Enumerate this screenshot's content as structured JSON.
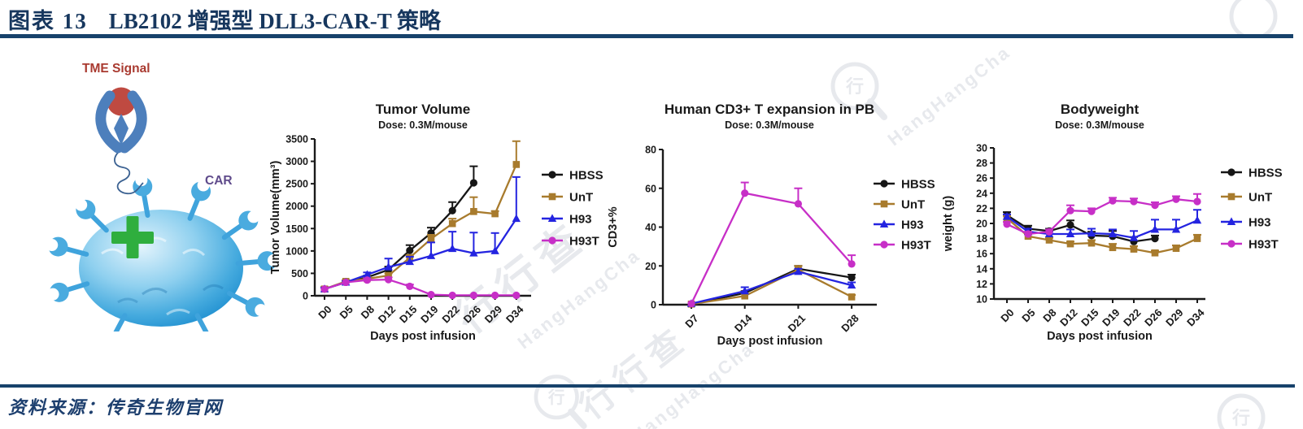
{
  "header": {
    "label": "图表 13",
    "title": "LB2102 增强型 DLL3-CAR-T 策略"
  },
  "footer": {
    "source_label": "资料来源：",
    "source": "传奇生物官网"
  },
  "diagram": {
    "tme_label": "TME Signal",
    "car_label": "CAR"
  },
  "watermark": {
    "cn": "行行查",
    "en": "HangHangCha"
  },
  "colors": {
    "accent_navy": "#17426b",
    "title_navy": "#17375e",
    "hbss": "#161616",
    "unt": "#a87b2d",
    "h93": "#2424e0",
    "h93t": "#c72fc7",
    "tme_red": "#a93a30",
    "car_purple": "#5f4b8b",
    "cell_blue": "#2e9fd9",
    "cross_green": "#2fae3e"
  },
  "chart_data": [
    {
      "type": "line",
      "title": "Tumor Volume",
      "subtitle": "Dose: 0.3M/mouse",
      "xlabel": "Days post infusion",
      "ylabel": "Tumor Volume(mm³)",
      "categories": [
        "D0",
        "D5",
        "D8",
        "D12",
        "D15",
        "D19",
        "D22",
        "D26",
        "D29",
        "D34"
      ],
      "ylim": [
        0,
        3500
      ],
      "ytick": 500,
      "grid": false,
      "legend_position": "right",
      "series": [
        {
          "name": "HBSS",
          "color": "#161616",
          "marker": "circle",
          "values": [
            150,
            300,
            410,
            580,
            1010,
            1400,
            1900,
            2520,
            null,
            null
          ],
          "errors": [
            40,
            30,
            40,
            70,
            120,
            120,
            190,
            370,
            0,
            0
          ]
        },
        {
          "name": "UnT",
          "color": "#a87b2d",
          "marker": "square",
          "values": [
            150,
            320,
            380,
            450,
            850,
            1270,
            1610,
            1880,
            1830,
            2930
          ],
          "errors": [
            30,
            30,
            40,
            50,
            60,
            90,
            110,
            320,
            60,
            520
          ]
        },
        {
          "name": "H93",
          "color": "#2424e0",
          "marker": "triangle",
          "values": [
            150,
            300,
            470,
            640,
            760,
            890,
            1050,
            950,
            1000,
            1720
          ],
          "errors": [
            30,
            30,
            50,
            190,
            110,
            300,
            380,
            460,
            400,
            930
          ]
        },
        {
          "name": "H93T",
          "color": "#c72fc7",
          "marker": "circle",
          "values": [
            150,
            300,
            350,
            360,
            210,
            25,
            10,
            10,
            10,
            10
          ],
          "errors": [
            0,
            0,
            40,
            50,
            40,
            0,
            0,
            0,
            0,
            0
          ]
        }
      ]
    },
    {
      "type": "line",
      "title": "Human CD3+ T expansion in PB",
      "subtitle": "Dose: 0.3M/mouse",
      "xlabel": "Days post infusion",
      "ylabel": "CD3+%",
      "categories": [
        "D7",
        "D14",
        "D21",
        "D28"
      ],
      "ylim": [
        0,
        80
      ],
      "ytick": 20,
      "grid": false,
      "legend_position": "right",
      "series": [
        {
          "name": "HBSS",
          "color": "#161616",
          "marker": "circle",
          "values": [
            0.3,
            6,
            18.5,
            14
          ],
          "errors": [
            0,
            1,
            1.5,
            1.5
          ]
        },
        {
          "name": "UnT",
          "color": "#a87b2d",
          "marker": "square",
          "values": [
            0.3,
            4.5,
            18,
            4
          ],
          "errors": [
            0,
            1,
            2,
            1
          ]
        },
        {
          "name": "H93",
          "color": "#2424e0",
          "marker": "triangle",
          "values": [
            0.5,
            7,
            17,
            10
          ],
          "errors": [
            0,
            2,
            1.5,
            1.5
          ]
        },
        {
          "name": "H93T",
          "color": "#c72fc7",
          "marker": "circle",
          "values": [
            0.5,
            57.5,
            52,
            21
          ],
          "errors": [
            0,
            5.5,
            8,
            4.5
          ]
        }
      ]
    },
    {
      "type": "line",
      "title": "Bodyweight",
      "subtitle": "Dose: 0.3M/mouse",
      "xlabel": "Days post infusion",
      "ylabel": "weight (g)",
      "categories": [
        "D0",
        "D5",
        "D8",
        "D12",
        "D15",
        "D19",
        "D22",
        "D26",
        "D29",
        "D34"
      ],
      "ylim": [
        10,
        30
      ],
      "ytick": 2,
      "grid": false,
      "legend_position": "right",
      "series": [
        {
          "name": "HBSS",
          "color": "#161616",
          "marker": "circle",
          "values": [
            21.1,
            19.3,
            19.0,
            19.8,
            18.4,
            18.3,
            17.6,
            18.0,
            null,
            null
          ],
          "errors": [
            0.4,
            0.4,
            0.3,
            0.6,
            0.5,
            0.7,
            0.6,
            0.4,
            0,
            0
          ]
        },
        {
          "name": "UnT",
          "color": "#a87b2d",
          "marker": "square",
          "values": [
            20.7,
            18.3,
            17.8,
            17.3,
            17.4,
            16.8,
            16.6,
            16.1,
            16.7,
            18.0
          ],
          "errors": [
            0.3,
            0.3,
            0.3,
            0.3,
            0.4,
            0.5,
            0.4,
            0.3,
            0.4,
            0.5
          ]
        },
        {
          "name": "H93",
          "color": "#2424e0",
          "marker": "triangle",
          "values": [
            20.9,
            18.9,
            18.6,
            18.6,
            18.7,
            18.6,
            18.1,
            19.2,
            19.2,
            20.4
          ],
          "errors": [
            0.3,
            0.4,
            0.3,
            0.6,
            0.6,
            0.6,
            0.9,
            1.3,
            1.3,
            1.4
          ]
        },
        {
          "name": "H93T",
          "color": "#c72fc7",
          "marker": "circle",
          "values": [
            19.9,
            18.6,
            18.9,
            21.7,
            21.6,
            23.0,
            22.9,
            22.4,
            23.2,
            22.9
          ],
          "errors": [
            0.3,
            0.3,
            0.3,
            0.7,
            0.4,
            0.4,
            0.4,
            0.4,
            0.4,
            1.0
          ]
        }
      ]
    }
  ]
}
